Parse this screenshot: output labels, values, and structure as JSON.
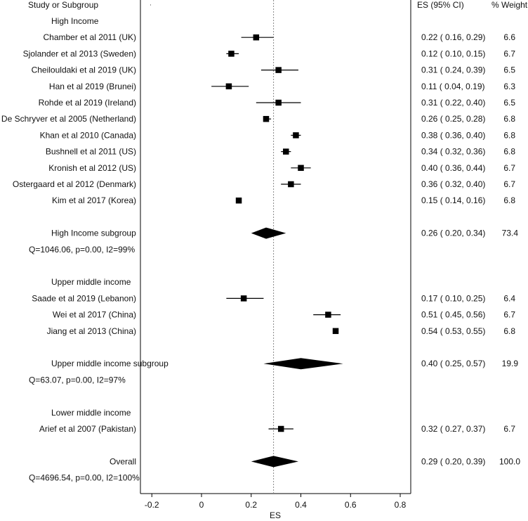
{
  "chart_data": {
    "type": "forest",
    "xlabel": "ES",
    "xlim": [
      -0.25,
      0.85
    ],
    "xticks": [
      -0.2,
      0,
      0.2,
      0.4,
      0.6,
      0.8
    ],
    "xtick_labels": [
      "-0.2",
      "0",
      "0.2",
      "0.4",
      "0.6",
      "0.8"
    ],
    "reference_line": 0.29,
    "headers": {
      "study": "Study or Subgroup",
      "es": "ES (95% CI)",
      "weight": "% Weight"
    },
    "rows": [
      {
        "kind": "group",
        "label": "High Income"
      },
      {
        "kind": "study",
        "label": "Chamber et al 2011 (UK)",
        "es": 0.22,
        "lo": 0.16,
        "hi": 0.29,
        "ci_text": "0.22  (  0.16,  0.29)",
        "weight": "6.6"
      },
      {
        "kind": "study",
        "label": "Sjolander et al 2013 (Sweden)",
        "es": 0.12,
        "lo": 0.1,
        "hi": 0.15,
        "ci_text": "0.12  (  0.10,  0.15)",
        "weight": "6.7"
      },
      {
        "kind": "study",
        "label": "Cheilouldaki et al 2019 (UK)",
        "es": 0.31,
        "lo": 0.24,
        "hi": 0.39,
        "ci_text": "0.31  (  0.24,  0.39)",
        "weight": "6.5"
      },
      {
        "kind": "study",
        "label": "Han et al 2019 (Brunei)",
        "es": 0.11,
        "lo": 0.04,
        "hi": 0.19,
        "ci_text": "0.11  (  0.04,  0.19)",
        "weight": "6.3"
      },
      {
        "kind": "study",
        "label": "Rohde et al 2019 (Ireland)",
        "es": 0.31,
        "lo": 0.22,
        "hi": 0.4,
        "ci_text": "0.31  (  0.22,  0.40)",
        "weight": "6.5"
      },
      {
        "kind": "study",
        "label": "De Schryver et al 2005 (Netherland)",
        "es": 0.26,
        "lo": 0.25,
        "hi": 0.28,
        "ci_text": "0.26  (  0.25,  0.28)",
        "weight": "6.8"
      },
      {
        "kind": "study",
        "label": "Khan et al 2010 (Canada)",
        "es": 0.38,
        "lo": 0.36,
        "hi": 0.4,
        "ci_text": "0.38  (  0.36,  0.40)",
        "weight": "6.8"
      },
      {
        "kind": "study",
        "label": "Bushnell et al 2011 (US)",
        "es": 0.34,
        "lo": 0.32,
        "hi": 0.36,
        "ci_text": "0.34  (  0.32,  0.36)",
        "weight": "6.8"
      },
      {
        "kind": "study",
        "label": "Kronish et al 2012 (US)",
        "es": 0.4,
        "lo": 0.36,
        "hi": 0.44,
        "ci_text": "0.40  (  0.36,  0.44)",
        "weight": "6.7"
      },
      {
        "kind": "study",
        "label": "Ostergaard et al 2012 (Denmark)",
        "es": 0.36,
        "lo": 0.32,
        "hi": 0.4,
        "ci_text": "0.36  (  0.32,  0.40)",
        "weight": "6.7"
      },
      {
        "kind": "study",
        "label": "Kim et al 2017 (Korea)",
        "es": 0.15,
        "lo": 0.14,
        "hi": 0.16,
        "ci_text": "0.15  (  0.14,  0.16)",
        "weight": "6.8"
      },
      {
        "kind": "blank"
      },
      {
        "kind": "subgroup",
        "label": "High Income subgroup",
        "es": 0.26,
        "lo": 0.2,
        "hi": 0.34,
        "ci_text": "0.26  (  0.20,  0.34)",
        "weight": "73.4"
      },
      {
        "kind": "stat",
        "label": "Q=1046.06, p=0.00, I2=99%"
      },
      {
        "kind": "blank"
      },
      {
        "kind": "group",
        "label": "Upper middle income"
      },
      {
        "kind": "study",
        "label": "Saade et al 2019 (Lebanon)",
        "es": 0.17,
        "lo": 0.1,
        "hi": 0.25,
        "ci_text": "0.17  (  0.10,  0.25)",
        "weight": "6.4"
      },
      {
        "kind": "study",
        "label": "Wei et al 2017 (China)",
        "es": 0.51,
        "lo": 0.45,
        "hi": 0.56,
        "ci_text": "0.51  (  0.45,  0.56)",
        "weight": "6.7"
      },
      {
        "kind": "study",
        "label": "Jiang et al 2013 (China)",
        "es": 0.54,
        "lo": 0.53,
        "hi": 0.55,
        "ci_text": "0.54  (  0.53,  0.55)",
        "weight": "6.8"
      },
      {
        "kind": "blank"
      },
      {
        "kind": "subgroup",
        "label": "Upper middle income subgroup",
        "es": 0.4,
        "lo": 0.25,
        "hi": 0.57,
        "ci_text": "0.40  (  0.25,  0.57)",
        "weight": "19.9"
      },
      {
        "kind": "stat",
        "label": "Q=63.07, p=0.00, I2=97%"
      },
      {
        "kind": "blank"
      },
      {
        "kind": "group",
        "label": "Lower middle income"
      },
      {
        "kind": "study",
        "label": "Arief et al 2007 (Pakistan)",
        "es": 0.32,
        "lo": 0.27,
        "hi": 0.37,
        "ci_text": "0.32  (  0.27,  0.37)",
        "weight": "6.7"
      },
      {
        "kind": "blank"
      },
      {
        "kind": "overall",
        "label": "Overall",
        "es": 0.29,
        "lo": 0.2,
        "hi": 0.39,
        "ci_text": "0.29  (  0.20,  0.39)",
        "weight": "100.0"
      },
      {
        "kind": "stat",
        "label": "Q=4696.54, p=0.00, I2=100%"
      }
    ]
  }
}
